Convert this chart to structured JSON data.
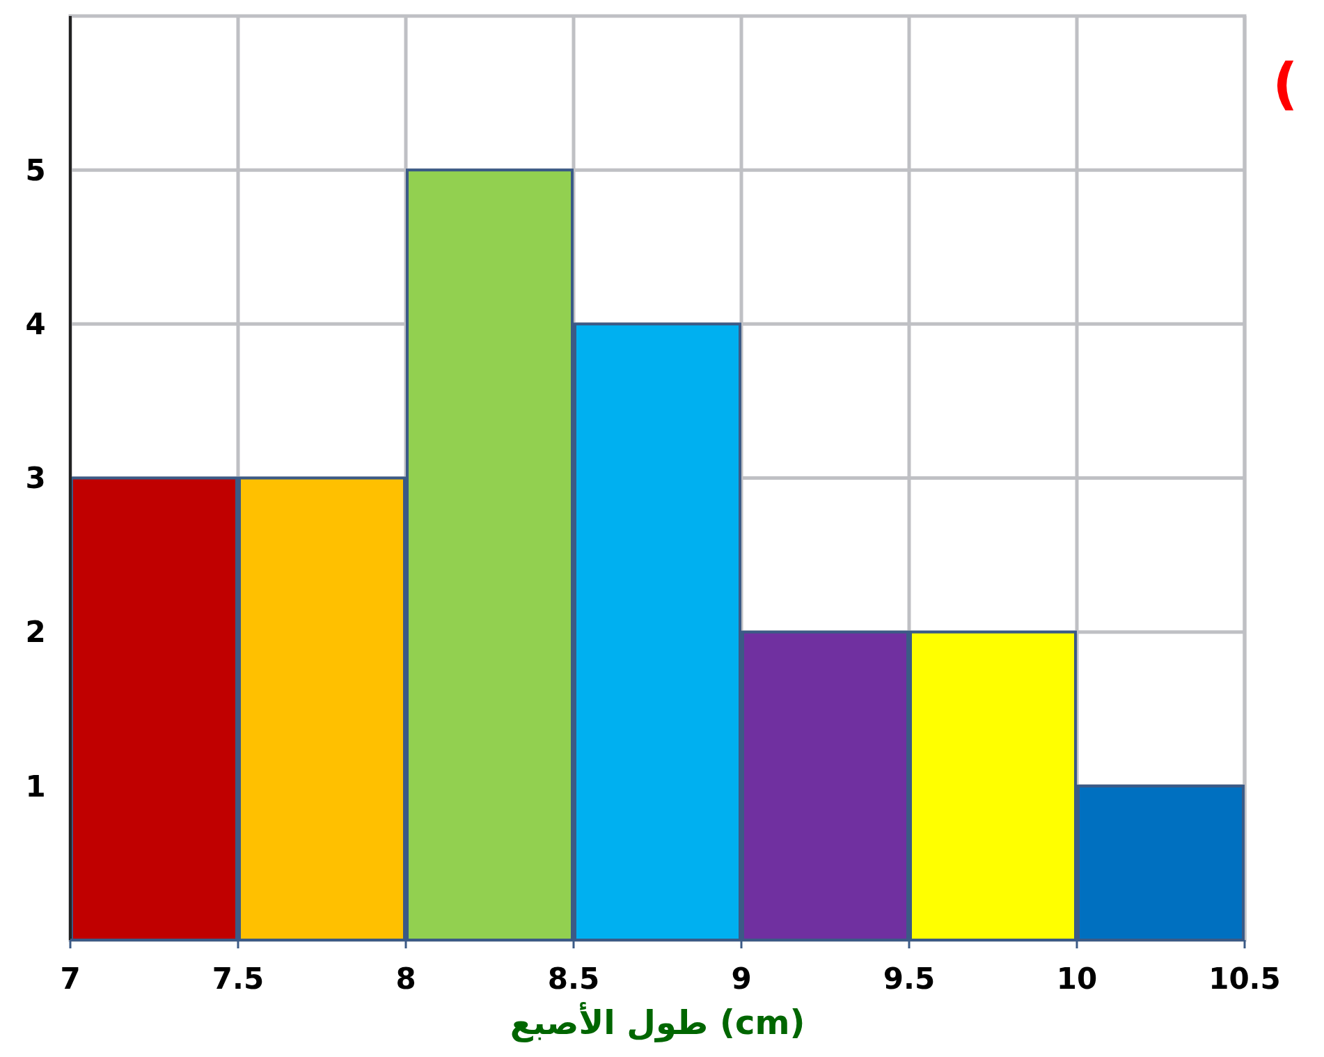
{
  "chart_data": {
    "type": "histogram",
    "xlabel": "طول الأصبع (cm)",
    "bins": [
      7,
      7.5,
      8,
      8.5,
      9,
      9.5,
      10,
      10.5
    ],
    "values": [
      3,
      3,
      5,
      4,
      2,
      2,
      1
    ],
    "colors": [
      "#c00000",
      "#ffc000",
      "#92d050",
      "#00b0f0",
      "#7030a0",
      "#ffff00",
      "#0070c0"
    ],
    "xlim": [
      7,
      10.5
    ],
    "xticks": [
      7,
      7.5,
      8,
      8.5,
      9,
      9.5,
      10,
      10.5
    ],
    "ylim": [
      0,
      6
    ],
    "yticks": [
      1,
      2,
      3,
      4,
      5
    ],
    "grid": true,
    "annotations": [
      "("
    ]
  }
}
